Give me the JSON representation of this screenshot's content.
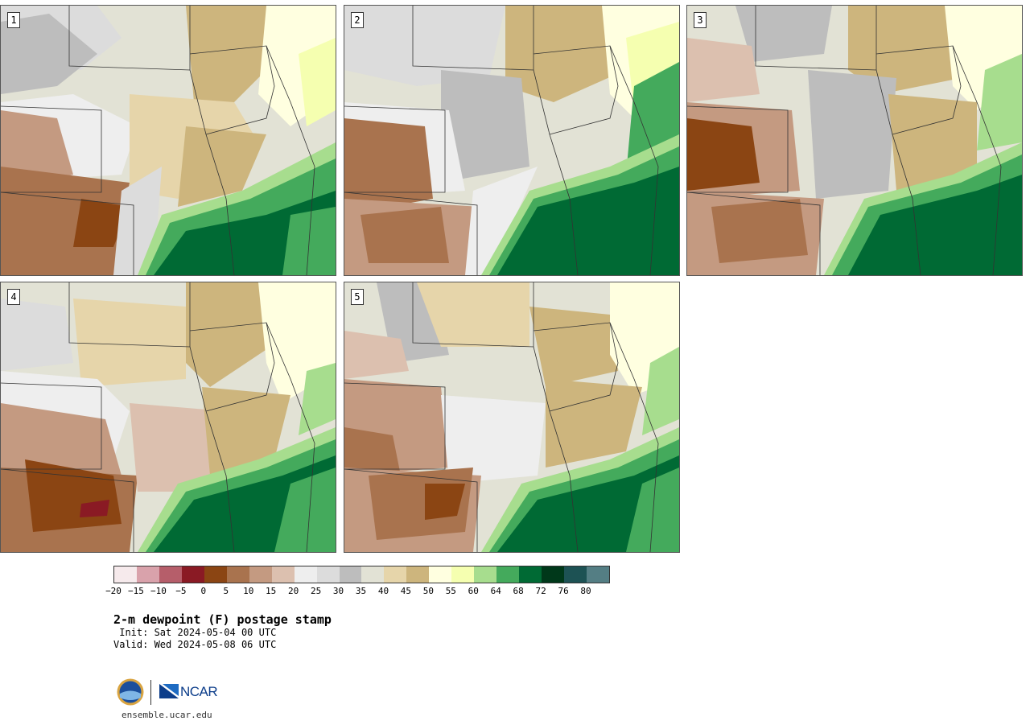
{
  "panels": [
    {
      "label": "1"
    },
    {
      "label": "2"
    },
    {
      "label": "3"
    },
    {
      "label": "4"
    },
    {
      "label": "5"
    }
  ],
  "colorbar": {
    "colors": [
      "#f6eaec",
      "#d9a2ab",
      "#b65e6a",
      "#8a1a24",
      "#8b4513",
      "#a9734e",
      "#c49a81",
      "#dcc0af",
      "#eeeeee",
      "#dcdcdc",
      "#bdbdbd",
      "#e2e2d5",
      "#e6d5aa",
      "#cdb57d",
      "#ffffe0",
      "#f5ffb0",
      "#a7dd8e",
      "#44aa5c",
      "#006a34",
      "#00381a",
      "#1d5254",
      "#547e84"
    ],
    "ticks": [
      "−20",
      "−15",
      "−10",
      "−5",
      "0",
      "5",
      "10",
      "15",
      "20",
      "25",
      "30",
      "35",
      "40",
      "45",
      "50",
      "55",
      "60",
      "64",
      "68",
      "72",
      "76",
      "80"
    ]
  },
  "title": "2-m dewpoint (F) postage stamp",
  "init": " Init: Sat 2024-05-04 00 UTC",
  "valid": "Valid: Wed 2024-05-08 06 UTC",
  "logos": {
    "ncar_text": "NCAR"
  },
  "website": "ensemble.ucar.edu"
}
